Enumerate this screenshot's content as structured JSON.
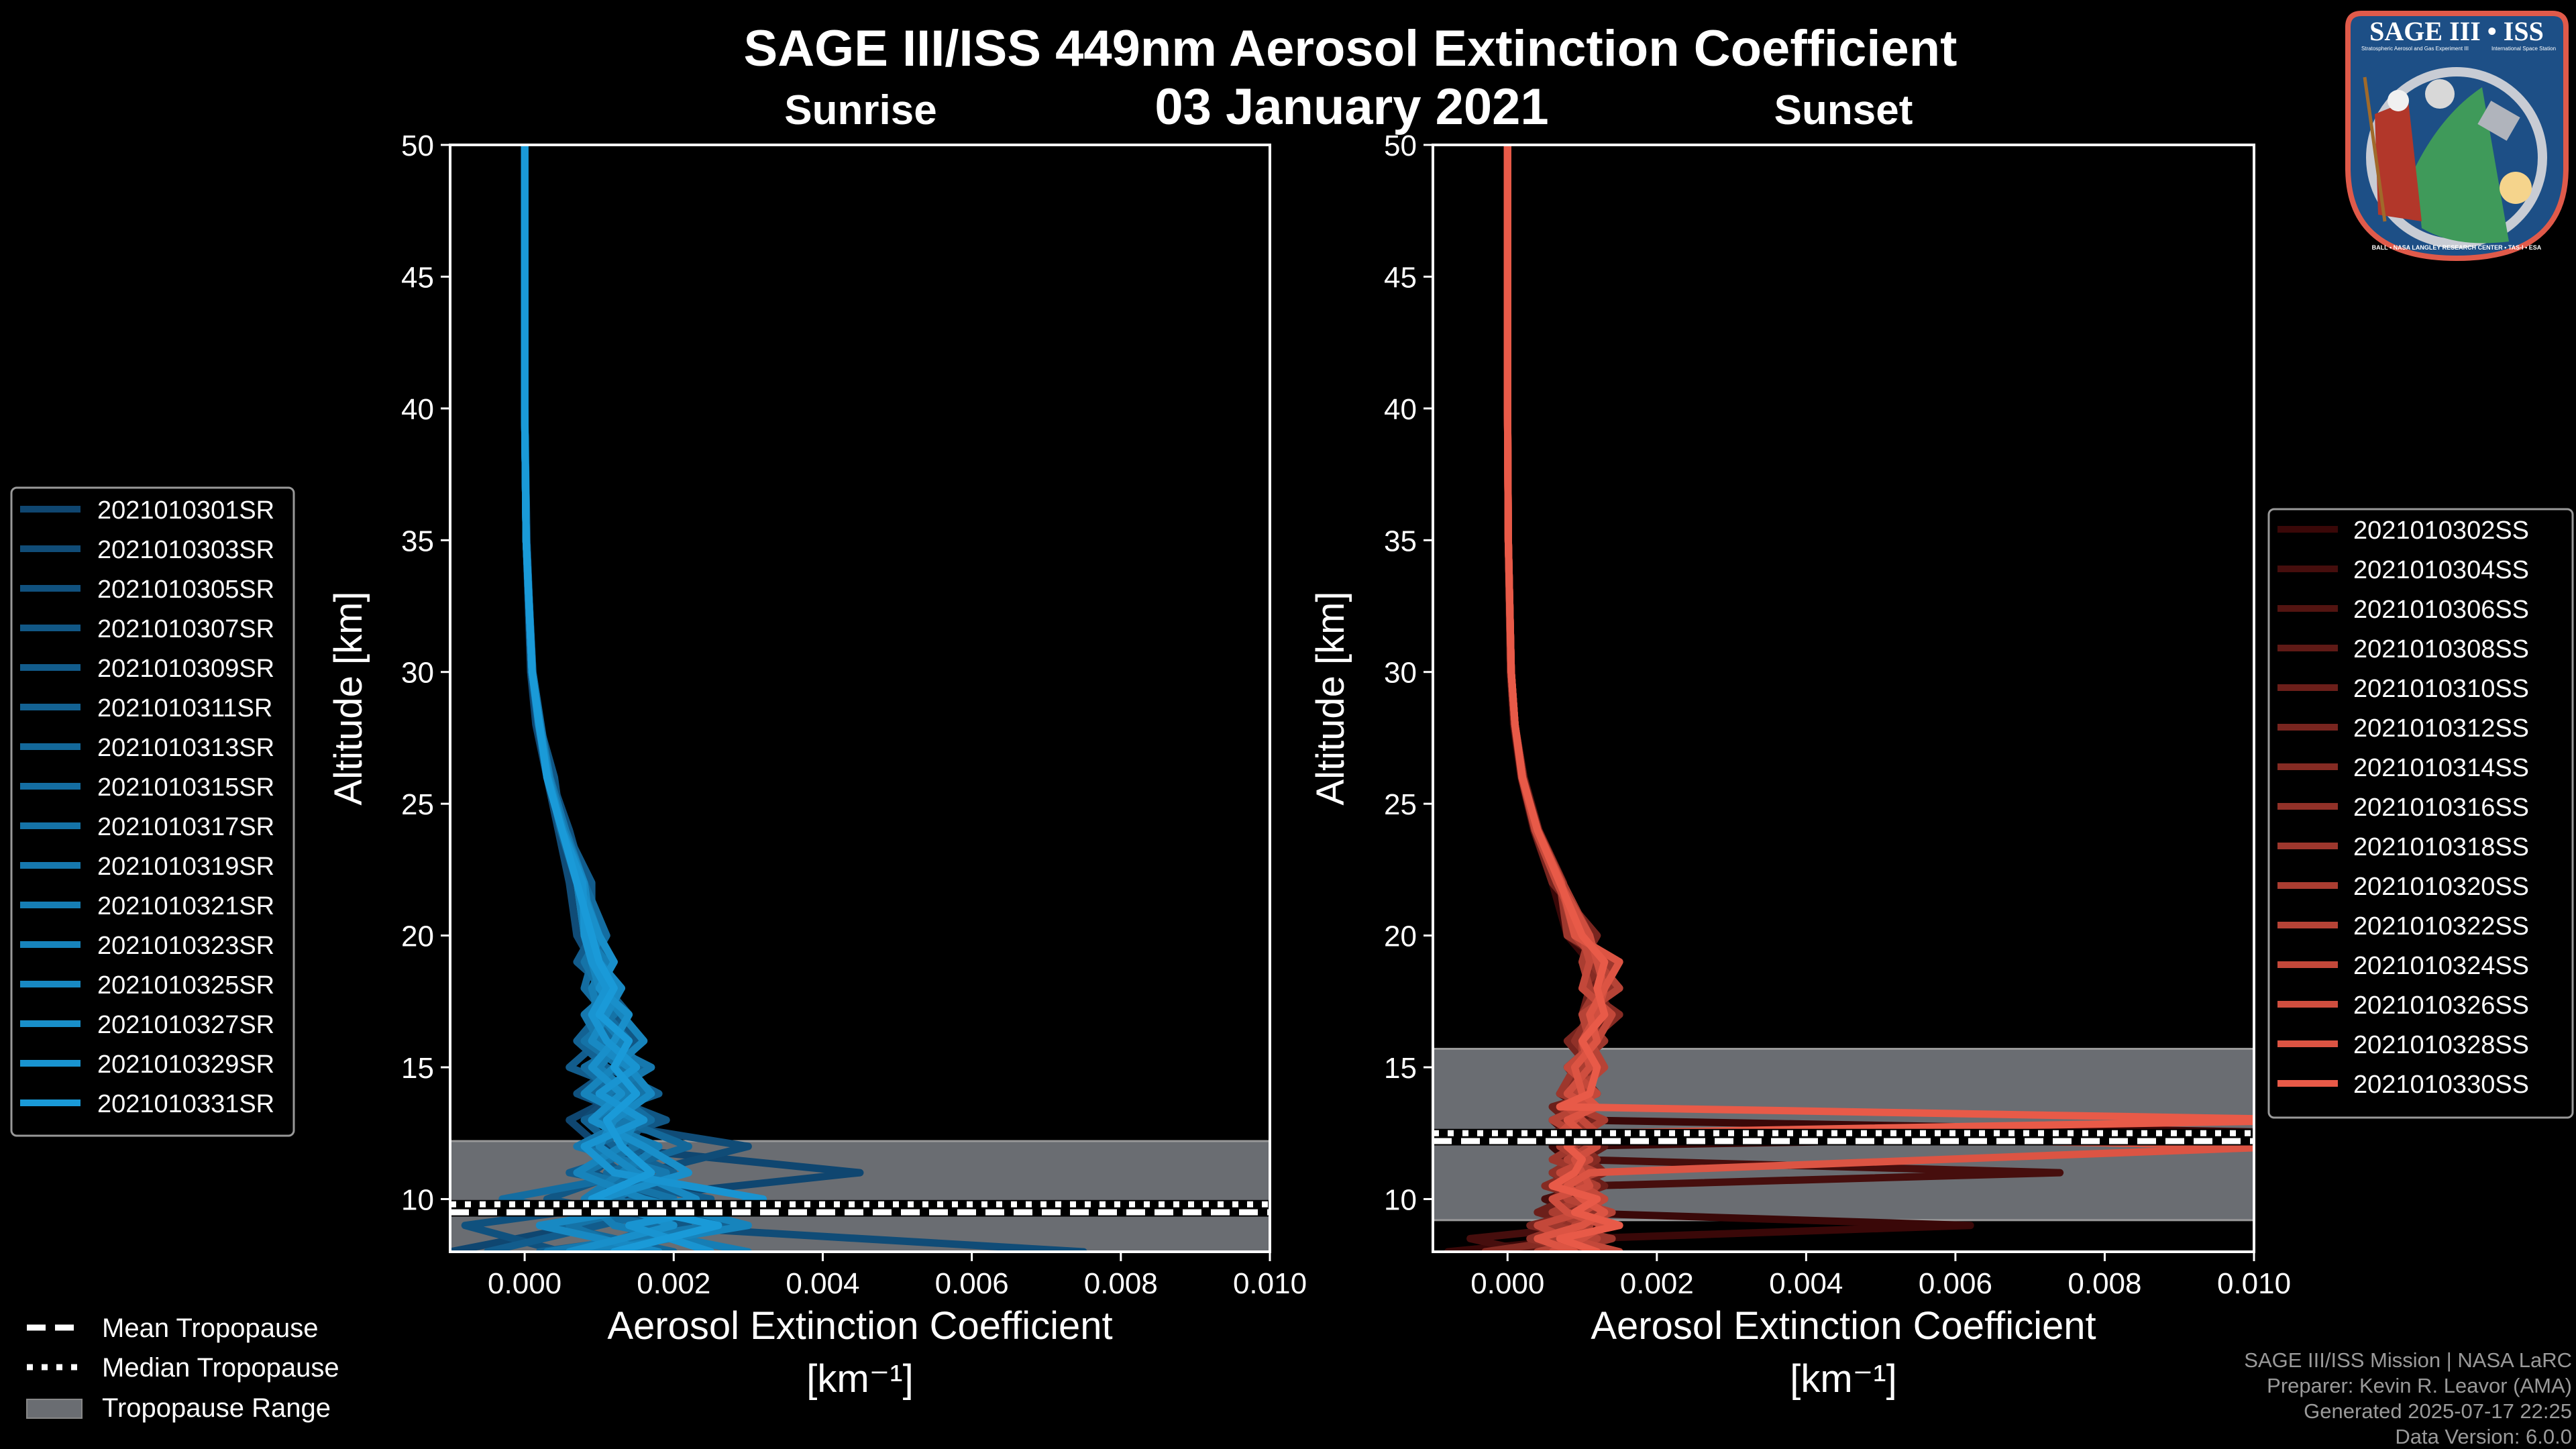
{
  "header": {
    "title": "SAGE III/ISS 449nm Aerosol Extinction Coefficient",
    "date": "03 January 2021"
  },
  "logo": {
    "text": "SAGE III • ISS",
    "subtitle_left": "Stratospheric Aerosol and Gas Experiment III",
    "subtitle_right": "International Space Station",
    "ring_text": "BALL • NASA LANGLEY RESEARCH CENTER • TAS-I • ESA"
  },
  "footer": {
    "lines": [
      "SAGE III/ISS Mission | NASA LaRC",
      "Preparer: Kevin R. Leavor (AMA)",
      "Generated 2025-07-17 22:25",
      "Data Version: 6.0.0"
    ]
  },
  "tropopause_legend": {
    "mean": "Mean Tropopause",
    "median": "Median Tropopause",
    "range": "Tropopause Range"
  },
  "colors": {
    "background": "#000000",
    "tropopause_range": "#6a6d72",
    "sr_start": "#0f4670",
    "sr_end": "#1a9ad8",
    "ss_start": "#3a0808",
    "ss_end": "#e85a48"
  },
  "chart_data": [
    {
      "type": "line",
      "title": "Sunrise",
      "xlabel": "Aerosol Extinction Coefficient",
      "xunit": "[km⁻¹]",
      "ylabel": "Altitude [km]",
      "xlim": [
        -0.001,
        0.01
      ],
      "ylim": [
        8,
        50
      ],
      "xticks": [
        "0.000",
        "0.002",
        "0.004",
        "0.006",
        "0.008",
        "0.010"
      ],
      "xtick_values": [
        0,
        0.002,
        0.004,
        0.006,
        0.008,
        0.01
      ],
      "yticks": [
        10,
        15,
        20,
        25,
        30,
        35,
        40,
        45,
        50
      ],
      "legend_position": "left",
      "tropopause": {
        "mean": 9.5,
        "median": 9.8,
        "range": [
          8.0,
          12.2
        ]
      },
      "value_scale": 0.001,
      "altitude": [
        8,
        9,
        10,
        11,
        12,
        13,
        14,
        15,
        16,
        17,
        18,
        19,
        20,
        22,
        24,
        26,
        28,
        30,
        35,
        40,
        50
      ],
      "series": [
        {
          "name": "2021010301SR",
          "values": [
            -1.0,
            0.8,
            1.2,
            4.5,
            1.0,
            0.6,
            1.3,
            1.0,
            1.1,
            0.9,
            1.0,
            0.8,
            0.9,
            0.7,
            0.5,
            0.3,
            0.15,
            0.08,
            0.02,
            0,
            0
          ]
        },
        {
          "name": "2021010303SR",
          "values": [
            7.5,
            1.5,
            0.9,
            1.6,
            3.0,
            0.8,
            1.2,
            1.4,
            0.9,
            1.1,
            0.8,
            0.9,
            0.7,
            0.6,
            0.45,
            0.3,
            0.2,
            0.1,
            0.02,
            0,
            0
          ]
        },
        {
          "name": "2021010305SR",
          "values": [
            0.5,
            -0.8,
            1.8,
            0.9,
            1.4,
            1.6,
            0.7,
            1.2,
            1.3,
            0.8,
            1.2,
            1.0,
            0.8,
            0.8,
            0.6,
            0.35,
            0.2,
            0.1,
            0.02,
            0,
            0
          ]
        },
        {
          "name": "2021010307SR",
          "values": [
            1.2,
            2.2,
            0.3,
            1.3,
            0.8,
            1.9,
            1.0,
            0.9,
            1.5,
            1.2,
            0.9,
            1.1,
            1.0,
            0.7,
            0.5,
            0.4,
            0.2,
            0.1,
            0.03,
            0,
            0
          ]
        },
        {
          "name": "2021010309SR",
          "values": [
            -0.5,
            1.0,
            2.5,
            0.6,
            1.7,
            1.1,
            1.5,
            0.6,
            1.0,
            1.4,
            1.1,
            0.7,
            0.9,
            0.9,
            0.55,
            0.3,
            0.18,
            0.09,
            0.02,
            0,
            0
          ]
        },
        {
          "name": "2021010311SR",
          "values": [
            0.2,
            2.8,
            1.0,
            2.0,
            1.2,
            0.8,
            1.8,
            1.1,
            0.7,
            1.0,
            1.3,
            1.0,
            0.8,
            0.75,
            0.5,
            0.32,
            0.2,
            0.1,
            0.02,
            0,
            0
          ]
        },
        {
          "name": "2021010313SR",
          "values": [
            2.0,
            0.4,
            1.5,
            1.1,
            2.2,
            1.3,
            0.9,
            1.6,
            1.2,
            0.9,
            1.0,
            1.2,
            0.9,
            0.7,
            0.48,
            0.33,
            0.22,
            0.11,
            0.02,
            0,
            0
          ]
        },
        {
          "name": "2021010315SR",
          "values": [
            0.8,
            1.8,
            -0.3,
            1.6,
            0.9,
            1.7,
            1.2,
            0.8,
            1.4,
            1.1,
            0.8,
            0.9,
            1.1,
            0.8,
            0.52,
            0.3,
            0.19,
            0.1,
            0.02,
            0,
            0
          ]
        },
        {
          "name": "2021010317SR",
          "values": [
            1.5,
            0.6,
            2.0,
            0.8,
            1.5,
            1.0,
            1.6,
            1.3,
            0.8,
            1.2,
            1.0,
            0.8,
            1.0,
            0.7,
            0.5,
            0.31,
            0.2,
            0.1,
            0.02,
            0,
            0
          ]
        },
        {
          "name": "2021010319SR",
          "values": [
            0.3,
            2.5,
            1.2,
            1.9,
            0.7,
            1.4,
            1.1,
            1.7,
            1.0,
            0.8,
            1.2,
            1.0,
            0.9,
            0.8,
            0.55,
            0.34,
            0.21,
            0.1,
            0.02,
            0,
            0
          ]
        },
        {
          "name": "2021010321SR",
          "values": [
            3.0,
            1.2,
            0.8,
            1.3,
            1.8,
            0.9,
            1.4,
            1.0,
            1.3,
            1.0,
            0.9,
            1.1,
            0.8,
            0.7,
            0.5,
            0.3,
            0.2,
            0.1,
            0.02,
            0,
            0
          ]
        },
        {
          "name": "2021010323SR",
          "values": [
            0.9,
            3.0,
            1.6,
            0.7,
            1.3,
            1.5,
            0.8,
            1.2,
            1.6,
            1.3,
            1.0,
            0.9,
            1.0,
            0.75,
            0.5,
            0.33,
            0.2,
            0.1,
            0.02,
            0,
            0
          ]
        },
        {
          "name": "2021010325SR",
          "values": [
            1.8,
            0.2,
            2.3,
            1.5,
            1.0,
            1.2,
            1.7,
            1.4,
            0.9,
            1.1,
            1.3,
            1.0,
            0.9,
            0.8,
            0.52,
            0.32,
            0.2,
            0.1,
            0.02,
            0,
            0
          ]
        },
        {
          "name": "2021010327SR",
          "values": [
            0.6,
            2.0,
            1.0,
            2.2,
            1.6,
            0.9,
            1.3,
            0.9,
            1.2,
            1.4,
            1.0,
            1.2,
            1.0,
            0.72,
            0.5,
            0.3,
            0.2,
            0.1,
            0.02,
            0,
            0
          ]
        },
        {
          "name": "2021010329SR",
          "values": [
            2.5,
            1.4,
            3.2,
            1.2,
            0.8,
            1.6,
            1.0,
            1.5,
            1.1,
            0.9,
            1.1,
            0.9,
            0.8,
            0.78,
            0.5,
            0.31,
            0.19,
            0.1,
            0.02,
            0,
            0
          ]
        },
        {
          "name": "2021010331SR",
          "values": [
            1.2,
            2.6,
            0.9,
            1.7,
            1.3,
            1.1,
            1.5,
            1.2,
            1.4,
            1.0,
            1.2,
            1.0,
            0.9,
            0.7,
            0.5,
            0.3,
            0.2,
            0.1,
            0.02,
            0,
            0
          ]
        }
      ]
    },
    {
      "type": "line",
      "title": "Sunset",
      "xlabel": "Aerosol Extinction Coefficient",
      "xunit": "[km⁻¹]",
      "ylabel": "Altitude [km]",
      "xlim": [
        -0.001,
        0.01
      ],
      "ylim": [
        8,
        50
      ],
      "xticks": [
        "0.000",
        "0.002",
        "0.004",
        "0.006",
        "0.008",
        "0.010"
      ],
      "xtick_values": [
        0,
        0.002,
        0.004,
        0.006,
        0.008,
        0.01
      ],
      "yticks": [
        10,
        15,
        20,
        25,
        30,
        35,
        40,
        45,
        50
      ],
      "legend_position": "right",
      "tropopause": {
        "mean": 12.2,
        "median": 12.5,
        "range": [
          9.2,
          15.7
        ]
      },
      "value_scale": 0.001,
      "altitude": [
        8,
        8.5,
        9,
        9.5,
        10,
        10.5,
        11,
        11.5,
        12,
        12.5,
        13,
        13.5,
        14,
        15,
        16,
        17,
        18,
        19,
        20,
        22,
        24,
        26,
        28,
        30,
        35,
        40,
        50
      ],
      "series": [
        {
          "name": "2021010302SS",
          "values": [
            -0.8,
            1.0,
            6.2,
            0.6,
            1.0,
            0.7,
            1.2,
            0.8,
            0.6,
            11,
            0.9,
            0.7,
            1.0,
            0.9,
            1.2,
            1.0,
            1.3,
            1.1,
            0.8,
            0.6,
            0.35,
            0.18,
            0.08,
            0.04,
            0.01,
            0,
            0
          ]
        },
        {
          "name": "2021010304SS",
          "values": [
            0.3,
            -0.5,
            1.2,
            0.9,
            0.5,
            1.1,
            7.4,
            0.9,
            1.0,
            0.8,
            0.6,
            1.0,
            0.7,
            1.1,
            0.9,
            1.3,
            1.1,
            1.2,
            0.9,
            0.7,
            0.4,
            0.2,
            0.1,
            0.05,
            0.01,
            0,
            0
          ]
        },
        {
          "name": "2021010306SS",
          "values": [
            1.1,
            0.4,
            0.7,
            1.3,
            0.9,
            0.6,
            0.8,
            1.2,
            0.7,
            1.0,
            0.9,
            0.8,
            1.1,
            0.8,
            1.2,
            1.1,
            1.4,
            1.0,
            1.1,
            0.65,
            0.38,
            0.2,
            0.1,
            0.05,
            0.01,
            0,
            0
          ]
        },
        {
          "name": "2021010308SS",
          "values": [
            0.2,
            1.3,
            0.5,
            0.8,
            1.2,
            0.9,
            0.6,
            1.0,
            1.3,
            0.7,
            1.1,
            0.9,
            0.8,
            1.2,
            1.0,
            1.4,
            1.2,
            1.3,
            0.8,
            0.75,
            0.42,
            0.22,
            0.1,
            0.05,
            0.01,
            0,
            0
          ]
        },
        {
          "name": "2021010310SS",
          "values": [
            1.4,
            0.6,
            1.0,
            0.4,
            0.8,
            1.3,
            1.0,
            0.7,
            0.9,
            1.2,
            0.8,
            0.6,
            1.2,
            0.9,
            1.3,
            1.0,
            1.1,
            1.2,
            1.0,
            0.7,
            0.4,
            0.2,
            0.1,
            0.05,
            0.01,
            0,
            0
          ]
        },
        {
          "name": "2021010312SS",
          "values": [
            0.5,
            1.1,
            0.3,
            1.0,
            0.6,
            0.9,
            1.3,
            1.1,
            0.8,
            0.6,
            1.2,
            1.0,
            0.9,
            1.1,
            0.8,
            1.2,
            1.3,
            1.0,
            1.2,
            0.6,
            0.36,
            0.19,
            0.09,
            0.04,
            0.01,
            0,
            0
          ]
        },
        {
          "name": "2021010314SS",
          "values": [
            -0.3,
            0.9,
            1.4,
            0.7,
            1.1,
            0.5,
            0.9,
            1.2,
            1.0,
            0.9,
            0.7,
            1.1,
            0.8,
            1.0,
            1.1,
            1.5,
            1.0,
            1.3,
            0.9,
            0.72,
            0.4,
            0.2,
            0.1,
            0.05,
            0.01,
            0,
            0
          ]
        },
        {
          "name": "2021010316SS",
          "values": [
            1.0,
            0.3,
            0.8,
            1.2,
            0.7,
            1.0,
            0.6,
            0.9,
            1.2,
            0.8,
            1.0,
            0.7,
            1.0,
            1.2,
            0.9,
            1.1,
            1.4,
            1.1,
            1.0,
            0.68,
            0.4,
            0.21,
            0.1,
            0.05,
            0.01,
            0,
            0
          ]
        },
        {
          "name": "2021010318SS",
          "values": [
            0.7,
            1.4,
            0.6,
            0.9,
            1.3,
            0.8,
            1.1,
            0.6,
            0.9,
            1.1,
            0.8,
            1.2,
            0.7,
            0.9,
            1.3,
            1.0,
            1.2,
            1.4,
            0.8,
            0.7,
            0.38,
            0.2,
            0.1,
            0.05,
            0.01,
            0,
            0
          ]
        },
        {
          "name": "2021010320SS",
          "values": [
            1.3,
            0.5,
            1.1,
            0.6,
            1.0,
            1.2,
            0.8,
            1.0,
            0.7,
            1.0,
            1.3,
            0.9,
            1.1,
            1.0,
            1.0,
            1.3,
            1.1,
            1.0,
            1.1,
            0.74,
            0.41,
            0.2,
            0.1,
            0.05,
            0.01,
            0,
            0
          ]
        },
        {
          "name": "2021010322SS",
          "values": [
            0.4,
            1.2,
            0.9,
            1.4,
            0.8,
            0.7,
            1.2,
            0.8,
            1.1,
            0.9,
            0.6,
            1.0,
            0.9,
            1.3,
            1.1,
            1.0,
            1.5,
            1.2,
            0.9,
            0.7,
            0.4,
            0.2,
            0.1,
            0.05,
            0.01,
            0,
            0
          ]
        },
        {
          "name": "2021010324SS",
          "values": [
            1.5,
            0.8,
            0.4,
            1.0,
            1.3,
            1.0,
            0.7,
            1.1,
            0.8,
            1.2,
            1.0,
            0.8,
            1.2,
            0.8,
            1.2,
            1.4,
            1.0,
            1.1,
            1.0,
            0.66,
            0.37,
            0.19,
            0.1,
            0.05,
            0.01,
            0,
            0
          ]
        },
        {
          "name": "2021010326SS",
          "values": [
            0.6,
            1.0,
            1.3,
            0.8,
            0.6,
            1.1,
            1.0,
            0.9,
            1.2,
            0.7,
            0.9,
            1.1,
            0.8,
            1.1,
            1.0,
            1.2,
            1.3,
            1.2,
            1.1,
            0.7,
            0.4,
            0.2,
            0.1,
            0.05,
            0.01,
            0,
            0
          ]
        },
        {
          "name": "2021010328SS",
          "values": [
            0.9,
            0.4,
            1.0,
            1.3,
            1.0,
            0.8,
            1.1,
            5.8,
            10.5,
            1.0,
            0.8,
            1.2,
            1.0,
            0.9,
            1.2,
            1.1,
            1.3,
            1.5,
            0.9,
            0.72,
            0.4,
            0.2,
            0.1,
            0.05,
            0.01,
            0,
            0
          ]
        },
        {
          "name": "2021010330SS",
          "values": [
            1.2,
            0.7,
            1.5,
            0.9,
            1.2,
            0.6,
            0.9,
            1.0,
            0.8,
            1.1,
            11,
            0.7,
            1.1,
            1.2,
            1.0,
            1.3,
            1.2,
            1.3,
            1.0,
            0.7,
            0.4,
            0.2,
            0.1,
            0.05,
            0.01,
            0,
            0
          ]
        }
      ]
    }
  ]
}
